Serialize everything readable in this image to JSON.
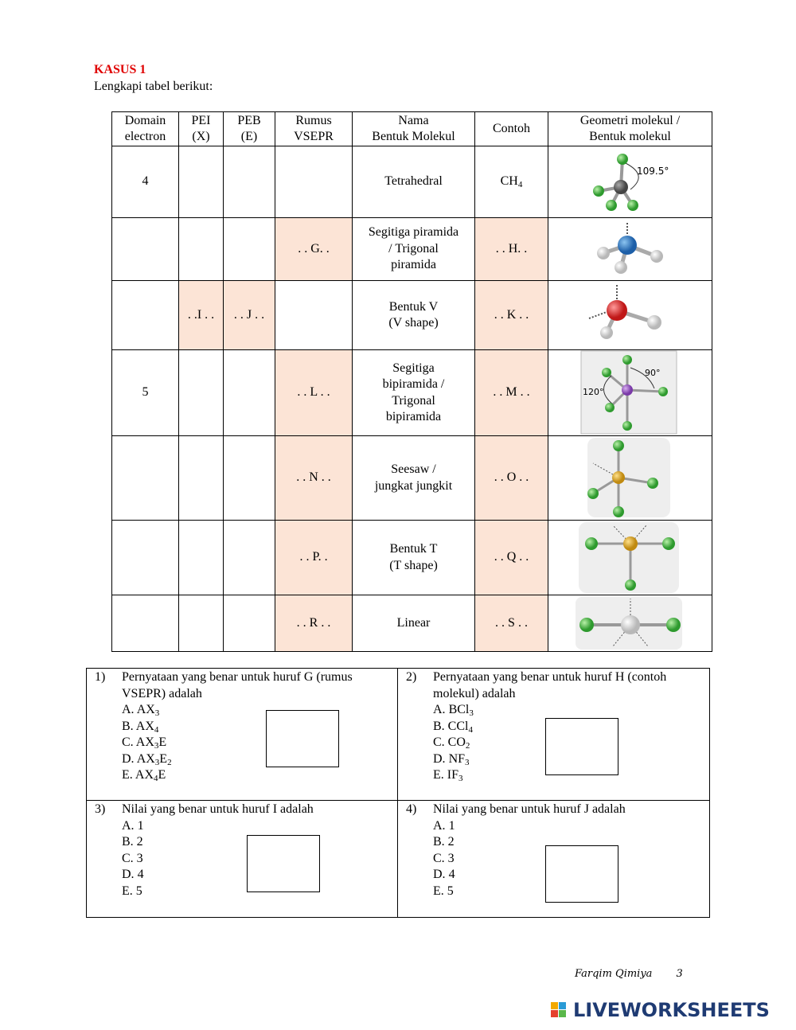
{
  "header": {
    "title": "KASUS 1",
    "instruction": "Lengkapi tabel berikut:"
  },
  "table": {
    "answer_fill": "#fce4d6",
    "columns": [
      [
        "Domain",
        "electron"
      ],
      [
        "PEI",
        "(X)"
      ],
      [
        "PEB",
        "(E)"
      ],
      [
        "Rumus",
        "VSEPR"
      ],
      [
        "Nama",
        "Bentuk Molekul"
      ],
      [
        "Contoh"
      ],
      [
        "Geometri molekul /",
        "Bentuk molekul"
      ]
    ],
    "rows": [
      {
        "domain": "4",
        "nama": [
          "Tetrahedral"
        ],
        "contoh": [
          "CH",
          "4"
        ],
        "angles": [
          "109.5°"
        ]
      },
      {
        "rumus": ". . G. .",
        "nama": [
          "Segitiga piramida",
          "/ Trigonal",
          "piramida"
        ],
        "contoh": [
          ". . H. ."
        ]
      },
      {
        "pei": ". .I . .",
        "peb": ". . J . .",
        "nama": [
          "Bentuk V",
          "(V shape)"
        ],
        "contoh": [
          ". . K . ."
        ]
      },
      {
        "domain": "5",
        "rumus": ". . L . .",
        "nama": [
          "Segitiga",
          "bipiramida /",
          "Trigonal",
          "bipiramida"
        ],
        "contoh": [
          ". . M . ."
        ],
        "angles": [
          "90°",
          "120°"
        ]
      },
      {
        "rumus": ". . N . .",
        "nama": [
          "Seesaw /",
          "jungkat jungkit"
        ],
        "contoh": [
          ". . O . ."
        ]
      },
      {
        "rumus": ". . P. .",
        "nama": [
          "Bentuk T",
          "(T shape)"
        ],
        "contoh": [
          ". . Q . ."
        ]
      },
      {
        "rumus": ". . R . .",
        "nama": [
          "Linear"
        ],
        "contoh": [
          ". . S . ."
        ]
      }
    ]
  },
  "questions": [
    {
      "number": "1)",
      "prompt": "Pernyataan yang benar untuk huruf G (rumus VSEPR) adalah",
      "options": [
        {
          "letter": "A.",
          "text": [
            "AX",
            "3"
          ]
        },
        {
          "letter": "B.",
          "text": [
            "AX",
            "4"
          ]
        },
        {
          "letter": "C.",
          "text": [
            "AX",
            "3",
            "E"
          ]
        },
        {
          "letter": "D.",
          "text": [
            "AX",
            "3",
            "E",
            "2"
          ]
        },
        {
          "letter": "E.",
          "text": [
            "AX",
            "4",
            "E"
          ]
        }
      ]
    },
    {
      "number": "2)",
      "prompt": "Pernyataan yang benar untuk huruf H (contoh molekul) adalah",
      "options": [
        {
          "letter": "A.",
          "text": [
            "BCl",
            "3"
          ]
        },
        {
          "letter": "B.",
          "text": [
            "CCl",
            "4"
          ]
        },
        {
          "letter": "C.",
          "text": [
            "CO",
            "2"
          ]
        },
        {
          "letter": "D.",
          "text": [
            "NF",
            "3"
          ]
        },
        {
          "letter": "E.",
          "text": [
            "IF",
            "3"
          ]
        }
      ]
    },
    {
      "number": "3)",
      "prompt": "Nilai yang benar untuk huruf  I adalah",
      "options": [
        {
          "letter": "A.",
          "text": [
            "1"
          ]
        },
        {
          "letter": "B.",
          "text": [
            "2"
          ]
        },
        {
          "letter": "C.",
          "text": [
            "3"
          ]
        },
        {
          "letter": "D.",
          "text": [
            "4"
          ]
        },
        {
          "letter": "E.",
          "text": [
            "5"
          ]
        }
      ]
    },
    {
      "number": "4)",
      "prompt": "Nilai yang benar untuk huruf  J adalah",
      "options": [
        {
          "letter": "A.",
          "text": [
            "1"
          ]
        },
        {
          "letter": "B.",
          "text": [
            "2"
          ]
        },
        {
          "letter": "C.",
          "text": [
            "3"
          ]
        },
        {
          "letter": "D.",
          "text": [
            "4"
          ]
        },
        {
          "letter": "E.",
          "text": [
            "5"
          ]
        }
      ]
    }
  ],
  "footer": {
    "author": "Farqim  Qimiya",
    "page": "3",
    "brand": "LIVEWORKSHEETS"
  }
}
